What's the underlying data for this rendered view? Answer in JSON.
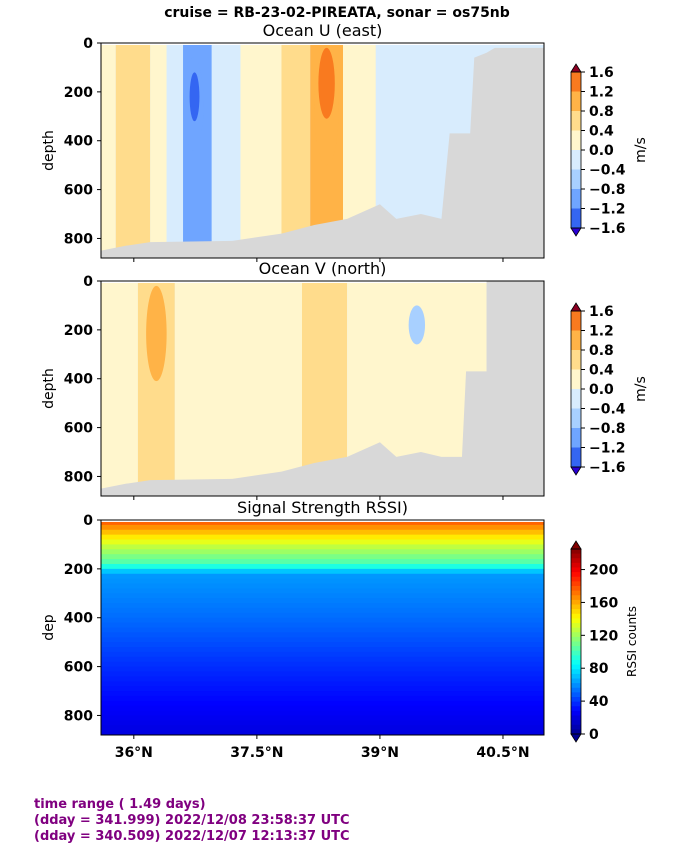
{
  "suptitle": "cruise = RB-23-02-PIREATA,  sonar = os75nb",
  "footer": {
    "line1": "time range ( 1.49 days)",
    "line2": "(dday = 341.999) 2022/12/08 23:58:37 UTC",
    "line3": "(dday = 340.509) 2022/12/07 12:13:37 UTC"
  },
  "colors": {
    "land_mask": "#d8d8d8",
    "diverging": [
      "#2a00d4",
      "#3466f2",
      "#6fa5ff",
      "#a8d0ff",
      "#d8ecfd",
      "#fff6cd",
      "#ffdc8c",
      "#ffb347",
      "#f97a1f",
      "#dd2a10",
      "#8b0022"
    ],
    "jet": [
      "#00008f",
      "#0000ff",
      "#0080ff",
      "#00ffff",
      "#80ff80",
      "#ffff00",
      "#ff8000",
      "#ff0000",
      "#800000"
    ]
  },
  "chart_data": [
    {
      "type": "heatmap",
      "title": "Ocean U (east)",
      "xlabel": "",
      "ylabel": "depth",
      "x_range": [
        35.6,
        41.0
      ],
      "y_range": [
        0,
        880
      ],
      "y_inverted": true,
      "yticks": [
        0,
        200,
        400,
        600,
        800
      ],
      "xticks": [
        36.0,
        37.5,
        39.0,
        40.5
      ],
      "xtick_labels": [],
      "colorbar": {
        "label": "m/s",
        "ticks": [
          "1.6",
          "1.2",
          "0.8",
          "0.4",
          "0.0",
          "−0.4",
          "−0.8",
          "−1.2",
          "−1.6"
        ],
        "range": [
          -1.6,
          1.6
        ]
      },
      "bands": [
        {
          "x": [
            35.6,
            35.78
          ],
          "value": 0.2
        },
        {
          "x": [
            35.78,
            36.2
          ],
          "value": 0.5
        },
        {
          "x": [
            36.2,
            36.4
          ],
          "value": 0.2
        },
        {
          "x": [
            36.4,
            36.6
          ],
          "value": -0.25
        },
        {
          "x": [
            36.6,
            36.95
          ],
          "value": -0.9
        },
        {
          "x": [
            36.95,
            37.3
          ],
          "value": -0.25
        },
        {
          "x": [
            37.3,
            37.8
          ],
          "value": 0.2
        },
        {
          "x": [
            37.8,
            38.15
          ],
          "value": 0.5
        },
        {
          "x": [
            38.15,
            38.55
          ],
          "value": 1.0
        },
        {
          "x": [
            38.55,
            38.95
          ],
          "value": 0.2
        },
        {
          "x": [
            38.95,
            40.3
          ],
          "value": -0.2
        }
      ],
      "cores": [
        {
          "x": [
            35.95,
            36.1
          ],
          "depth": [
            20,
            520
          ],
          "value": 0.6
        },
        {
          "x": [
            36.6,
            36.85
          ],
          "depth": [
            60,
            440
          ],
          "value": -1.0
        },
        {
          "x": [
            36.68,
            36.8
          ],
          "depth": [
            120,
            320
          ],
          "value": -1.2
        },
        {
          "x": [
            38.2,
            38.5
          ],
          "depth": [
            20,
            500
          ],
          "value": 1.0
        },
        {
          "x": [
            38.25,
            38.45
          ],
          "depth": [
            20,
            310
          ],
          "value": 1.5
        }
      ],
      "bottom_depth": [
        [
          35.6,
          850
        ],
        [
          35.9,
          830
        ],
        [
          36.2,
          815
        ],
        [
          37.2,
          810
        ],
        [
          37.8,
          780
        ],
        [
          38.2,
          745
        ],
        [
          38.6,
          720
        ],
        [
          39.0,
          660
        ],
        [
          39.2,
          720
        ],
        [
          39.5,
          700
        ],
        [
          39.75,
          720
        ],
        [
          39.85,
          370
        ],
        [
          40.1,
          370
        ],
        [
          40.15,
          60
        ],
        [
          40.3,
          40
        ],
        [
          40.4,
          20
        ],
        [
          41.0,
          20
        ]
      ]
    },
    {
      "type": "heatmap",
      "title": "Ocean V (north)",
      "xlabel": "",
      "ylabel": "depth",
      "x_range": [
        35.6,
        41.0
      ],
      "y_range": [
        0,
        880
      ],
      "y_inverted": true,
      "yticks": [
        0,
        200,
        400,
        600,
        800
      ],
      "xticks": [
        36.0,
        37.5,
        39.0,
        40.5
      ],
      "xtick_labels": [],
      "colorbar": {
        "label": "m/s",
        "ticks": [
          "1.6",
          "1.2",
          "0.8",
          "0.4",
          "0.0",
          "−0.4",
          "−0.8",
          "−1.2",
          "−1.6"
        ],
        "range": [
          -1.6,
          1.6
        ]
      },
      "bands": [
        {
          "x": [
            35.6,
            36.05
          ],
          "value": 0.2
        },
        {
          "x": [
            36.05,
            36.5
          ],
          "value": 0.45
        },
        {
          "x": [
            36.5,
            38.05
          ],
          "value": 0.2
        },
        {
          "x": [
            38.05,
            38.6
          ],
          "value": 0.45
        },
        {
          "x": [
            38.6,
            40.3
          ],
          "value": 0.15
        }
      ],
      "cores": [
        {
          "x": [
            36.15,
            36.4
          ],
          "depth": [
            20,
            410
          ],
          "value": 0.9
        },
        {
          "x": [
            39.35,
            39.55
          ],
          "depth": [
            100,
            260
          ],
          "value": -0.6
        }
      ],
      "bottom_depth": [
        [
          35.6,
          850
        ],
        [
          35.9,
          830
        ],
        [
          36.2,
          815
        ],
        [
          37.2,
          810
        ],
        [
          37.8,
          780
        ],
        [
          38.2,
          745
        ],
        [
          38.6,
          720
        ],
        [
          39.0,
          660
        ],
        [
          39.2,
          720
        ],
        [
          39.5,
          700
        ],
        [
          39.75,
          720
        ],
        [
          40.0,
          720
        ],
        [
          40.05,
          370
        ],
        [
          40.3,
          370
        ],
        [
          40.3,
          0
        ],
        [
          41.0,
          0
        ]
      ]
    },
    {
      "type": "heatmap",
      "title": "Signal Strength RSSI)",
      "xlabel": "",
      "ylabel": "dep",
      "x_range": [
        35.6,
        41.0
      ],
      "y_range": [
        0,
        880
      ],
      "y_inverted": true,
      "yticks": [
        0,
        200,
        400,
        600,
        800
      ],
      "xticks": [
        36.0,
        37.5,
        39.0,
        40.5
      ],
      "xtick_labels": [
        "36°N",
        "37.5°N",
        "39°N",
        "40.5°N"
      ],
      "colorbar": {
        "label": "RSSI counts",
        "ticks": [
          "200",
          "160",
          "120",
          "80",
          "40",
          "0"
        ],
        "range": [
          0,
          225
        ]
      },
      "profile": [
        {
          "depth": 0,
          "value": 180
        },
        {
          "depth": 30,
          "value": 165
        },
        {
          "depth": 100,
          "value": 130
        },
        {
          "depth": 180,
          "value": 100
        },
        {
          "depth": 220,
          "value": 62
        },
        {
          "depth": 400,
          "value": 52
        },
        {
          "depth": 600,
          "value": 38
        },
        {
          "depth": 880,
          "value": 20
        }
      ]
    }
  ]
}
